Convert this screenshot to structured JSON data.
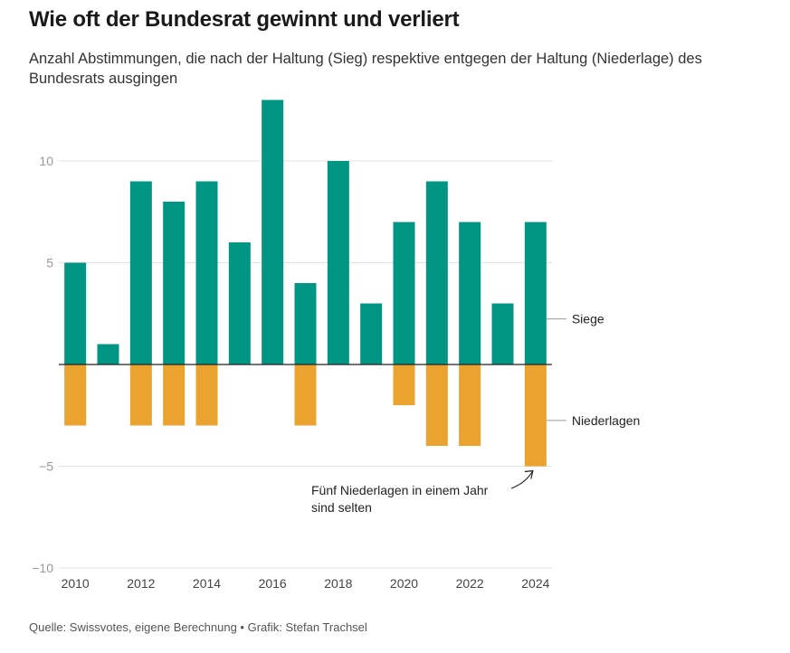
{
  "header": {
    "title": "Wie oft der Bundesrat gewinnt und verliert",
    "subtitle": "Anzahl Abstimmungen, die nach der Haltung (Sieg) respektive entgegen der Haltung (Niederlage) des Bundesrats ausgingen"
  },
  "footer": {
    "source": "Quelle: Swissvotes, eigene Berechnung • Grafik: Stefan Trachsel"
  },
  "chart_data": {
    "type": "bar",
    "title": "Wie oft der Bundesrat gewinnt und verliert",
    "xlabel": "",
    "ylabel": "",
    "categories": [
      2010,
      2011,
      2012,
      2013,
      2014,
      2015,
      2016,
      2017,
      2018,
      2019,
      2020,
      2021,
      2022,
      2023,
      2024
    ],
    "series": [
      {
        "name": "Siege",
        "color": "#009683",
        "values": [
          5,
          1,
          9,
          8,
          9,
          6,
          13,
          4,
          10,
          3,
          7,
          9,
          7,
          3,
          7
        ]
      },
      {
        "name": "Niederlagen",
        "color": "#e9a32e",
        "values": [
          -3,
          0,
          -3,
          -3,
          -3,
          0,
          0,
          -3,
          0,
          0,
          -2,
          -4,
          -4,
          0,
          -5
        ]
      }
    ],
    "ylim": [
      -10,
      13
    ],
    "yticks": [
      {
        "value": 10,
        "label": "10"
      },
      {
        "value": 5,
        "label": "5"
      },
      {
        "value": -5,
        "label": "−5"
      },
      {
        "value": -10,
        "label": "−10"
      }
    ],
    "xtick_labels": [
      "2010",
      "2012",
      "2014",
      "2016",
      "2018",
      "2020",
      "2022",
      "2024"
    ],
    "series_labels": [
      "Siege",
      "Niederlagen"
    ],
    "annotation": {
      "lines": [
        "Fünf Niederlagen in einem Jahr",
        "sind selten"
      ],
      "target_category": 2024,
      "target_value": -5
    }
  }
}
